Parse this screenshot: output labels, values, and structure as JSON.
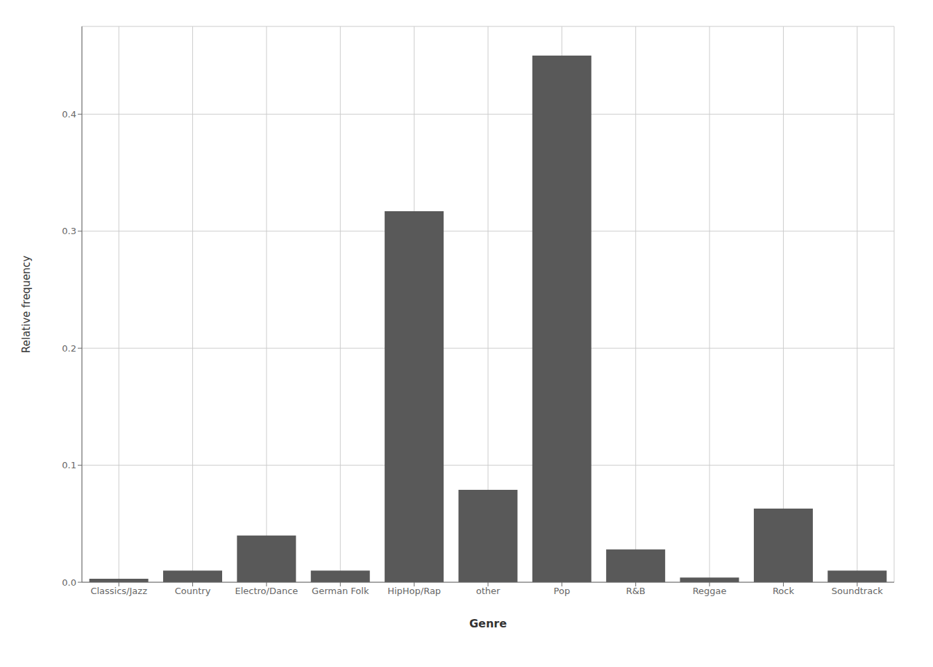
{
  "chart_data": {
    "type": "bar",
    "categories": [
      "Classics/Jazz",
      "Country",
      "Electro/Dance",
      "German Folk",
      "HipHop/Rap",
      "other",
      "Pop",
      "R&B",
      "Reggae",
      "Rock",
      "Soundtrack"
    ],
    "values": [
      0.003,
      0.01,
      0.04,
      0.01,
      0.317,
      0.079,
      0.45,
      0.028,
      0.004,
      0.063,
      0.01
    ],
    "color": "#595959",
    "xlabel": "Genre",
    "ylabel": "Relative frequency",
    "ylim": [
      0,
      0.475
    ],
    "yticks": [
      {
        "value": 0,
        "label": "0.0"
      },
      0.1,
      0.2,
      0.3,
      0.4
    ],
    "grid": true
  }
}
